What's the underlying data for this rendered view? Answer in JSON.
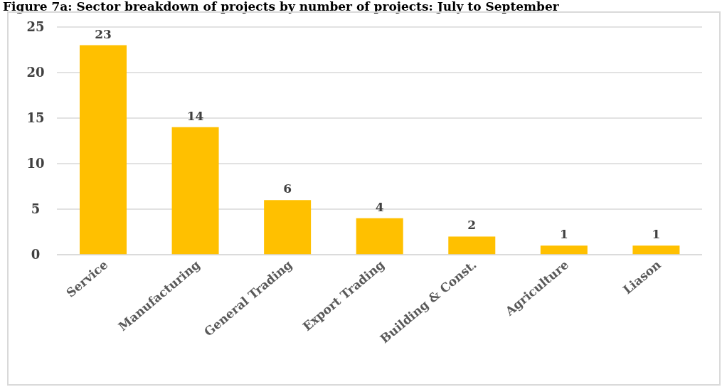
{
  "chart_data": {
    "type": "bar",
    "title": "Figure 7a: Sector breakdown of projects by number of projects: July to September",
    "categories": [
      "Service",
      "Manufacturing",
      "General Trading",
      "Export Trading",
      "Building & Const.",
      "Agriculture",
      "Liason"
    ],
    "values": [
      23,
      14,
      6,
      4,
      2,
      1,
      1
    ],
    "color": "#ffc000",
    "ylim": [
      0,
      25
    ],
    "yticks": [
      0,
      5,
      10,
      15,
      20,
      25
    ],
    "grid": "y",
    "data_labels": true
  }
}
